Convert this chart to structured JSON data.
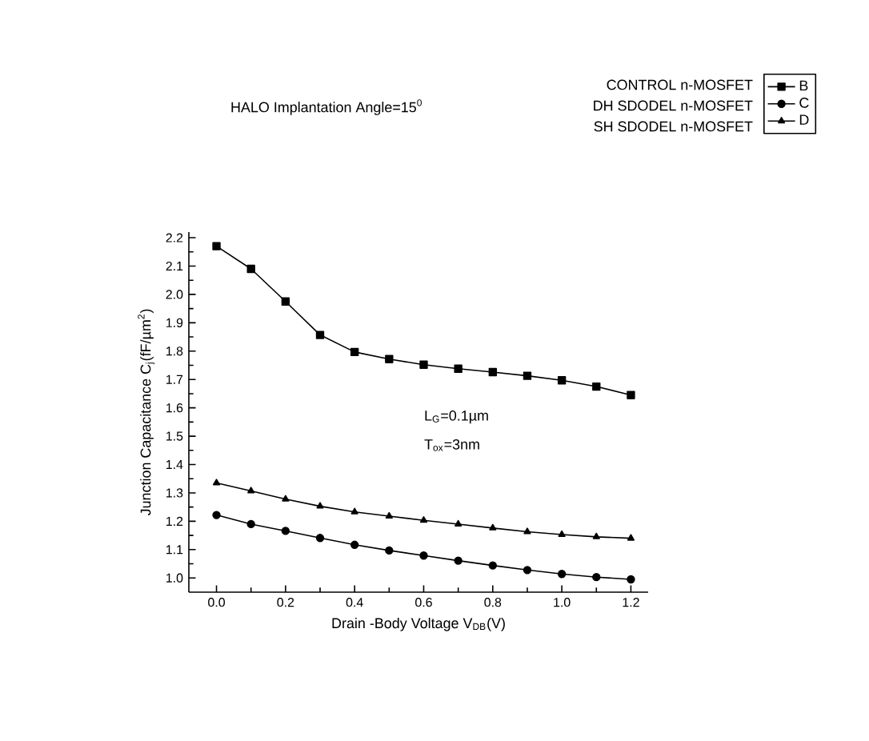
{
  "chart_data": {
    "type": "line",
    "title": "HALO Implantation Angle=15$^{0}$",
    "xlabel": "Drain -Body Voltage V$_{DB}$(V)",
    "ylabel": "Junction Capacitance C$_{j}$(fF/µm$^{2}$)",
    "x": [
      0.0,
      0.1,
      0.2,
      0.3,
      0.4,
      0.5,
      0.6,
      0.7,
      0.8,
      0.9,
      1.0,
      1.1,
      1.2
    ],
    "series": [
      {
        "name": "B",
        "color": "#000000",
        "marker": "square",
        "values": [
          2.17,
          2.09,
          1.975,
          1.857,
          1.797,
          1.772,
          1.752,
          1.738,
          1.726,
          1.713,
          1.697,
          1.675,
          1.645
        ]
      },
      {
        "name": "C",
        "color": "#000000",
        "marker": "circle",
        "values": [
          1.222,
          1.19,
          1.166,
          1.141,
          1.117,
          1.097,
          1.079,
          1.061,
          1.044,
          1.028,
          1.014,
          1.003,
          0.995
        ]
      },
      {
        "name": "D",
        "color": "#000000",
        "marker": "triangle",
        "values": [
          1.335,
          1.307,
          1.278,
          1.253,
          1.233,
          1.218,
          1.203,
          1.19,
          1.176,
          1.163,
          1.153,
          1.145,
          1.14
        ]
      }
    ],
    "annotations": [
      "CONTROL n-MOSFET",
      "DH SDODEL n-MOSFET",
      "SH SDODEL n-MOSFET",
      "L$_{G}$=0.1µm",
      "T$_{ox}$=3nm"
    ],
    "xlim": [
      -0.08,
      1.25
    ],
    "xticks": [
      {
        "value": 0,
        "label": "0.0"
      },
      0.2,
      0.4,
      0.6,
      0.8,
      {
        "value": 1,
        "label": "1.0"
      },
      1.2
    ],
    "ylim": [
      0.95,
      2.22
    ],
    "yticks": [
      {
        "value": 1,
        "label": "1.0"
      },
      1.1,
      1.2,
      1.3,
      1.4,
      1.5,
      1.6,
      1.7,
      1.8,
      1.9,
      {
        "value": 2,
        "label": "2.0"
      },
      2.1,
      2.2
    ],
    "grid": false,
    "legend": "top right",
    "line_style": "solid"
  }
}
